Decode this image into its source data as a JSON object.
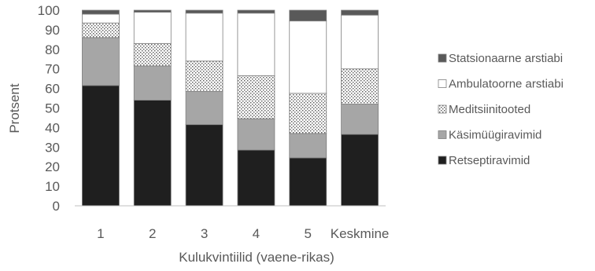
{
  "chart_data": {
    "type": "bar",
    "stacked": true,
    "xlabel": "Kulukvintiilid (vaene-rikas)",
    "ylabel": "Protsent",
    "ylim": [
      0,
      100
    ],
    "yticks": [
      "0",
      "10",
      "20",
      "30",
      "40",
      "50",
      "60",
      "70",
      "80",
      "90",
      "100"
    ],
    "categories": [
      "1",
      "2",
      "3",
      "4",
      "5",
      "Keskmine"
    ],
    "grid": false,
    "legend_position": "right",
    "series": [
      {
        "name": "Retseptiravimid",
        "color": "#1f1f1f",
        "pattern": "solid",
        "values": [
          61.5,
          54,
          41.5,
          28.5,
          24.5,
          36.5
        ]
      },
      {
        "name": "Käsimüügiravimid",
        "color": "#a6a6a6",
        "pattern": "solid",
        "values": [
          24.5,
          17.5,
          17,
          16,
          12.5,
          15.5
        ]
      },
      {
        "name": "Meditsiinitooted",
        "color": "#ffffff",
        "pattern": "dots",
        "values": [
          7.5,
          11.5,
          15.5,
          22,
          20.5,
          18
        ]
      },
      {
        "name": "Ambulatoorne arstiabi",
        "color": "#ffffff",
        "pattern": "solid",
        "values": [
          4.5,
          16,
          24.5,
          32,
          37,
          27.5
        ]
      },
      {
        "name": "Statsionaarne arstiabi",
        "color": "#595959",
        "pattern": "solid",
        "values": [
          2,
          1,
          1.5,
          1.5,
          5.5,
          2.5
        ]
      }
    ]
  }
}
